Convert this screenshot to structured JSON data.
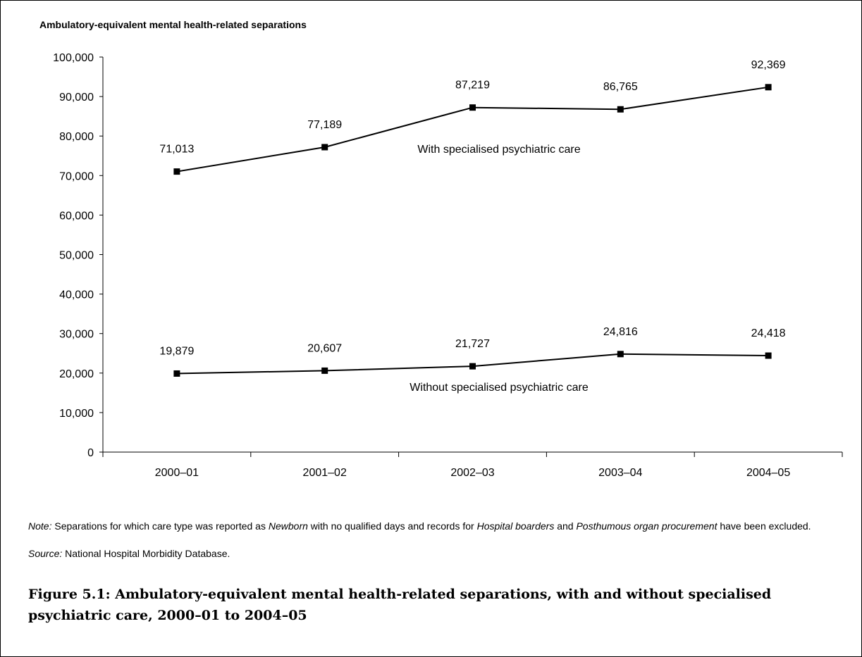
{
  "chart_data": {
    "type": "line",
    "title": "Ambulatory-equivalent mental health-related separations",
    "xlabel": "",
    "ylabel": "",
    "categories": [
      "2000–01",
      "2001–02",
      "2002–03",
      "2003–04",
      "2004–05"
    ],
    "ylim": [
      0,
      100000
    ],
    "y_ticks": [
      "0",
      "10,000",
      "20,000",
      "30,000",
      "40,000",
      "50,000",
      "60,000",
      "70,000",
      "80,000",
      "90,000",
      "100,000"
    ],
    "grid": false,
    "legend": "none",
    "series": [
      {
        "name": "With specialised psychiatric care",
        "values": [
          71013,
          77189,
          87219,
          86765,
          92369
        ],
        "labels": [
          "71,013",
          "77,189",
          "87,219",
          "86,765",
          "92,369"
        ],
        "color": "#000000"
      },
      {
        "name": "Without specialised psychiatric care",
        "values": [
          19879,
          20607,
          21727,
          24816,
          24418
        ],
        "labels": [
          "19,879",
          "20,607",
          "21,727",
          "24,816",
          "24,418"
        ],
        "color": "#000000"
      }
    ]
  },
  "note": {
    "label": "Note:",
    "text_1": " Separations for which care type was reported as ",
    "em_1": "Newborn",
    "text_2": " with no qualified days and records for ",
    "em_2": "Hospital boarders",
    "text_3": " and ",
    "em_3": "Posthumous organ procurement",
    "text_4": " have been excluded."
  },
  "source": {
    "label": "Source:",
    "text": " National Hospital Morbidity Database."
  },
  "caption": "Figure 5.1: Ambulatory-equivalent mental health-related separations, with and without specialised psychiatric care, 2000–01 to 2004–05"
}
